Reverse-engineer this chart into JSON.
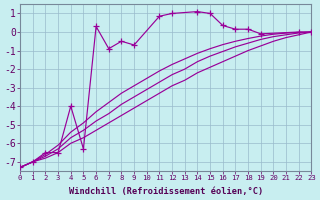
{
  "xlabel": "Windchill (Refroidissement éolien,°C)",
  "bg_color": "#c8eef0",
  "grid_color": "#99bbcc",
  "line_color": "#990099",
  "ylim": [
    -7.5,
    1.5
  ],
  "xlim": [
    0,
    23
  ],
  "yticks": [
    1,
    0,
    -1,
    -2,
    -3,
    -4,
    -5,
    -6,
    -7
  ],
  "xticks": [
    0,
    1,
    2,
    3,
    4,
    5,
    6,
    7,
    8,
    9,
    10,
    11,
    12,
    13,
    14,
    15,
    16,
    17,
    18,
    19,
    20,
    21,
    22,
    23
  ],
  "main_x": [
    0,
    1,
    2,
    3,
    4,
    5,
    6,
    7,
    8,
    9,
    11,
    12,
    14,
    15,
    16,
    17,
    18,
    19,
    22,
    23
  ],
  "main_y": [
    -7.3,
    -7.0,
    -6.5,
    -6.5,
    -4.0,
    -6.3,
    0.3,
    -0.9,
    -0.5,
    -0.7,
    0.85,
    1.0,
    1.1,
    1.0,
    0.35,
    0.15,
    0.15,
    -0.1,
    0.0,
    0.0
  ],
  "sA_x": [
    0,
    1,
    2,
    3,
    4,
    5,
    6,
    7,
    8,
    9,
    10,
    11,
    12,
    13,
    14,
    15,
    16,
    17,
    18,
    19,
    20,
    21,
    22,
    23
  ],
  "sA_y": [
    -7.3,
    -7.0,
    -6.8,
    -6.5,
    -6.0,
    -5.7,
    -5.3,
    -4.9,
    -4.5,
    -4.1,
    -3.7,
    -3.3,
    -2.9,
    -2.6,
    -2.2,
    -1.9,
    -1.6,
    -1.3,
    -1.0,
    -0.75,
    -0.5,
    -0.3,
    -0.15,
    0.0
  ],
  "sB_x": [
    0,
    1,
    2,
    3,
    4,
    5,
    6,
    7,
    8,
    9,
    10,
    11,
    12,
    13,
    14,
    15,
    16,
    17,
    18,
    19,
    20,
    21,
    22,
    23
  ],
  "sB_y": [
    -7.3,
    -7.0,
    -6.7,
    -6.3,
    -5.7,
    -5.3,
    -4.8,
    -4.4,
    -3.9,
    -3.5,
    -3.1,
    -2.7,
    -2.3,
    -2.0,
    -1.6,
    -1.3,
    -1.05,
    -0.8,
    -0.6,
    -0.4,
    -0.25,
    -0.15,
    -0.05,
    0.0
  ],
  "sC_x": [
    0,
    1,
    2,
    3,
    4,
    5,
    6,
    7,
    8,
    9,
    10,
    11,
    12,
    13,
    14,
    15,
    16,
    17,
    18,
    19,
    20,
    21,
    22,
    23
  ],
  "sC_y": [
    -7.3,
    -7.0,
    -6.6,
    -6.1,
    -5.4,
    -4.9,
    -4.3,
    -3.8,
    -3.3,
    -2.9,
    -2.5,
    -2.1,
    -1.75,
    -1.45,
    -1.15,
    -0.9,
    -0.68,
    -0.5,
    -0.35,
    -0.22,
    -0.12,
    -0.06,
    -0.02,
    0.0
  ]
}
